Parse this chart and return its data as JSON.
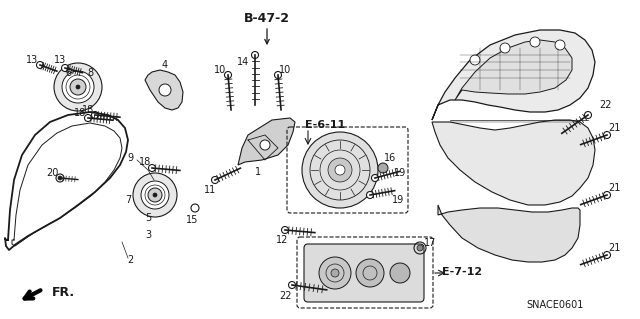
{
  "bg_color": "#ffffff",
  "line_color": "#1a1a1a",
  "title": "B-47-2",
  "subtitle_code": "SNACE0601",
  "ref_E611": "E-6-11",
  "ref_E712": "E-7-12",
  "fig_w": 6.4,
  "fig_h": 3.19,
  "dpi": 100,
  "font_size": 7,
  "font_size_title": 8,
  "font_size_ref": 7
}
